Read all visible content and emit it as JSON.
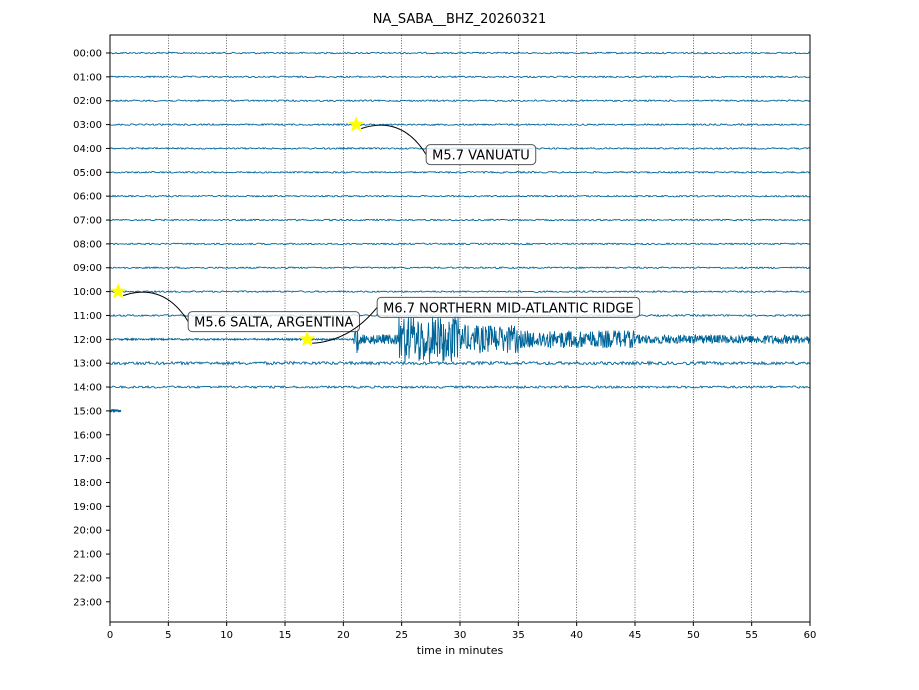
{
  "chart_data": {
    "type": "line",
    "title": "NA_SABA__BHZ_20260321",
    "xlabel": "time in minutes",
    "ylabel": "",
    "xlim": [
      0,
      60
    ],
    "x_ticks": [
      0,
      5,
      10,
      15,
      20,
      25,
      30,
      35,
      40,
      45,
      50,
      55,
      60
    ],
    "y_tick_labels": [
      "00:00",
      "01:00",
      "02:00",
      "03:00",
      "04:00",
      "05:00",
      "06:00",
      "07:00",
      "08:00",
      "09:00",
      "10:00",
      "11:00",
      "12:00",
      "13:00",
      "14:00",
      "15:00",
      "16:00",
      "17:00",
      "18:00",
      "19:00",
      "20:00",
      "21:00",
      "22:00",
      "23:00"
    ],
    "grid": "vertical dotted",
    "trace_color": "#006699",
    "event_color": "#ffff00",
    "traces": [
      {
        "hour": "00:00",
        "start": 0,
        "end": 60
      },
      {
        "hour": "01:00",
        "start": 0,
        "end": 60
      },
      {
        "hour": "02:00",
        "start": 0,
        "end": 60
      },
      {
        "hour": "03:00",
        "start": 0,
        "end": 60
      },
      {
        "hour": "04:00",
        "start": 0,
        "end": 60
      },
      {
        "hour": "05:00",
        "start": 0,
        "end": 60
      },
      {
        "hour": "06:00",
        "start": 0,
        "end": 60
      },
      {
        "hour": "07:00",
        "start": 0,
        "end": 60
      },
      {
        "hour": "08:00",
        "start": 0,
        "end": 60
      },
      {
        "hour": "09:00",
        "start": 0,
        "end": 60
      },
      {
        "hour": "10:00",
        "start": 0,
        "end": 60
      },
      {
        "hour": "11:00",
        "start": 0,
        "end": 60
      },
      {
        "hour": "12:00",
        "start": 0,
        "end": 60
      },
      {
        "hour": "13:00",
        "start": 0,
        "end": 60
      },
      {
        "hour": "14:00",
        "start": 0,
        "end": 60
      },
      {
        "hour": "15:00",
        "start": 0,
        "end": 1
      }
    ],
    "events": [
      {
        "label": "M5.7 VANUATU",
        "hour": "03:00",
        "minute": 21.1
      },
      {
        "label": "M5.6 SALTA, ARGENTINA",
        "hour": "10:00",
        "minute": 0.7
      },
      {
        "label": "M6.7 NORTHERN MID-ATLANTIC RIDGE",
        "hour": "12:00",
        "minute": 16.9
      }
    ]
  }
}
